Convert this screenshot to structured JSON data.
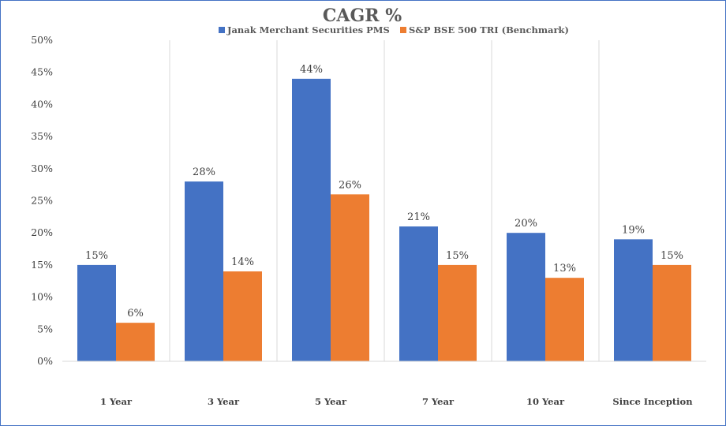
{
  "chart_data": {
    "type": "bar",
    "title": "CAGR %",
    "categories": [
      "1 Year",
      "3 Year",
      "5 Year",
      "7 Year",
      "10 Year",
      "Since Inception"
    ],
    "series": [
      {
        "name": "Janak Merchant Securities PMS",
        "color": "#4472C4",
        "values": [
          15,
          28,
          44,
          21,
          20,
          19
        ]
      },
      {
        "name": "S&P BSE 500 TRI (Benchmark)",
        "color": "#ED7D31",
        "values": [
          6,
          14,
          26,
          15,
          13,
          15
        ]
      }
    ],
    "value_suffix": "%",
    "ylim": [
      0,
      50
    ],
    "yticks": [
      "0%",
      "5%",
      "10%",
      "15%",
      "20%",
      "25%",
      "30%",
      "35%",
      "40%",
      "45%",
      "50%"
    ],
    "grid": "vertical category separators",
    "legend_position": "top"
  }
}
